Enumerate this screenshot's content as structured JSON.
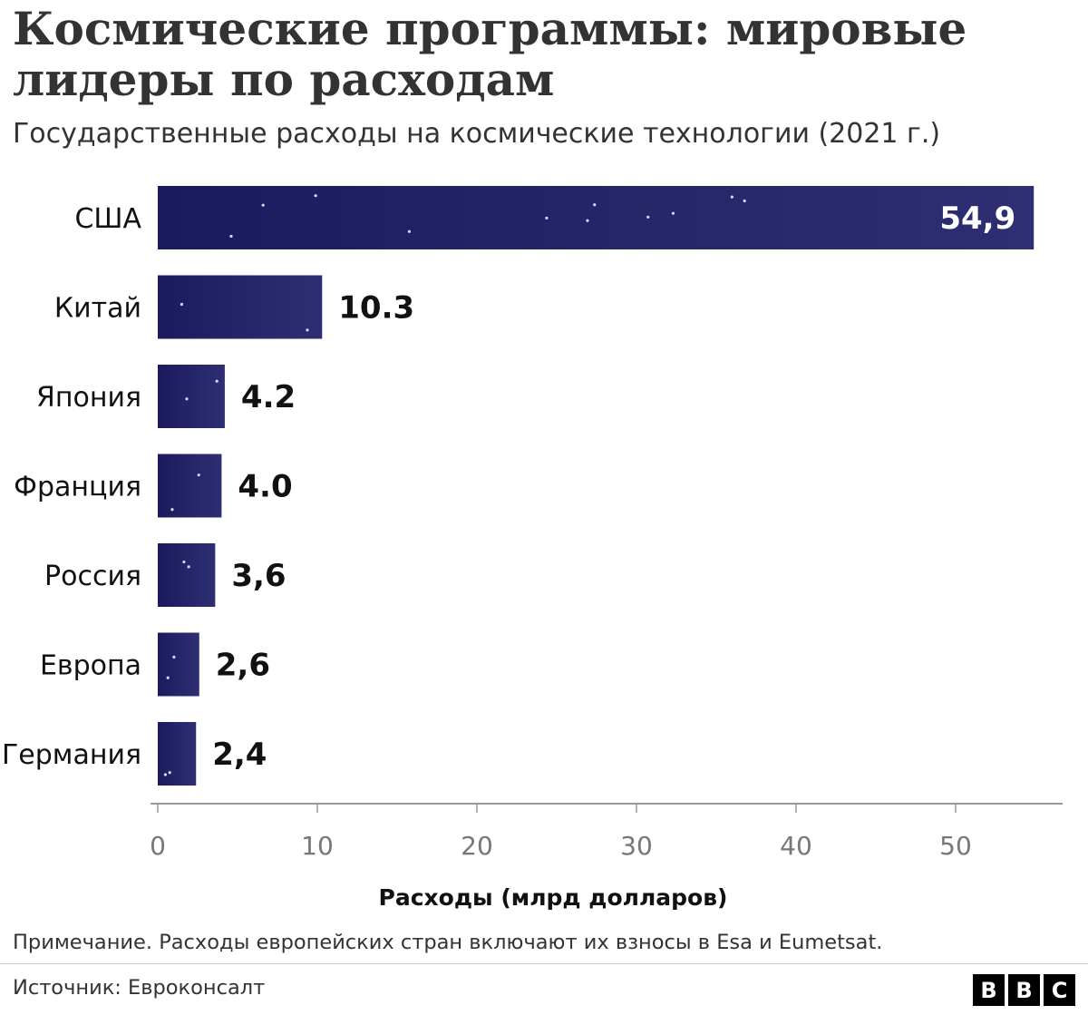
{
  "title": "Космические программы: мировые лидеры по расходам",
  "subtitle": "Государственные расходы на космические технологии (2021 г.)",
  "note": "Примечание. Расходы европейских стран включают их взносы в Esa и Eumetsat.",
  "source": "Источник: Евроконсалт",
  "logo": {
    "letters": [
      "B",
      "B",
      "C"
    ]
  },
  "colors": {
    "bar": "#2b2c6e",
    "bar_dark": "#1b1a5e",
    "star": "#d8d8f0",
    "axis": "#999999",
    "tick_label": "#777777"
  },
  "chart_data": {
    "type": "bar",
    "orientation": "horizontal",
    "categories": [
      "США",
      "Китай",
      "Япония",
      "Франция",
      "Россия",
      "Европа",
      "Германия"
    ],
    "values": [
      54.9,
      10.3,
      4.2,
      4.0,
      3.6,
      2.6,
      2.4
    ],
    "value_labels": [
      "54,9",
      "10.3",
      "4.2",
      "4.0",
      "3,6",
      "2,6",
      "2,4"
    ],
    "xlabel": "Расходы (млрд долларов)",
    "ylabel": "",
    "xlim": [
      0,
      56
    ],
    "ticks": [
      0,
      10,
      20,
      30,
      40,
      50
    ],
    "tick_labels": [
      "0",
      "10",
      "20",
      "30",
      "40",
      "50"
    ],
    "grid": false,
    "legend": "none"
  }
}
